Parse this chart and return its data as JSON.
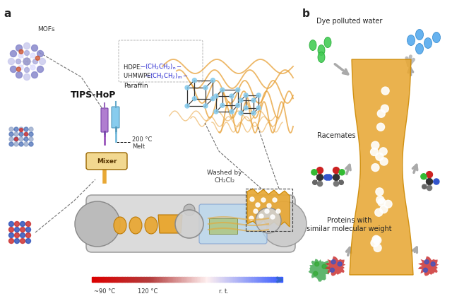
{
  "panel_a_label": "a",
  "panel_b_label": "b",
  "mofs_label": "MOFs",
  "tips_hop_label": "TIPS-HoP",
  "paraffin_label": "Paraffin",
  "temp_melt": "200 °C",
  "melt_label": "Melt",
  "mixer_label": "Mixer",
  "wash_label": "Washed by\nCH₂Cl₂",
  "temp1": "~90 °C",
  "temp2": "120 °C",
  "temp3": "r. t.",
  "dye_label": "Dye polluted water",
  "racemates_label": "Racemates",
  "proteins_label": "Proteins with\nsimilar molecular weight",
  "bg_color": "#ffffff",
  "blue_formula_color": "#1a1acc",
  "membrane_color": "#E8A835",
  "arrow_gray": "#aaaaaa",
  "extruder_gray": "#cccccc",
  "tube_edge": "#999999"
}
